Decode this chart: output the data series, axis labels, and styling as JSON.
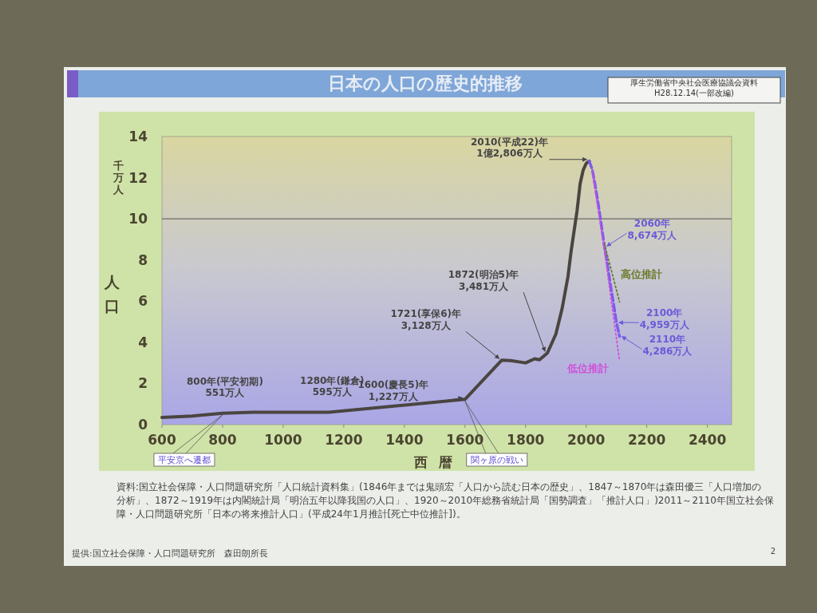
{
  "chart_data": {
    "type": "line",
    "title": "日本の人口の歴史的推移",
    "xlabel": "西暦",
    "ylabel": "人口",
    "xlim": [
      600,
      2480
    ],
    "xticks": [
      600,
      800,
      1000,
      1200,
      1400,
      1600,
      1800,
      2000,
      2200,
      2400
    ],
    "ylim": [
      0,
      14
    ],
    "yticks": [
      0,
      2,
      4,
      6,
      8,
      10,
      12,
      14
    ],
    "ref_lines": [
      {
        "axis": "y",
        "value": 10,
        "color": "#555555",
        "line_style": "solid"
      }
    ],
    "series": [
      {
        "color": "#4a4540",
        "line_style": "solid",
        "x": [
          600,
          700,
          800,
          900,
          1150,
          1600,
          1721,
          1750,
          1800,
          1830,
          1846,
          1872,
          1900,
          1920,
          1940,
          1950,
          1960,
          1970,
          1980,
          1990,
          2000,
          2010
        ],
        "values": [
          0.35,
          0.42,
          0.551,
          0.6,
          0.6,
          1.227,
          3.128,
          3.11,
          3.0,
          3.2,
          3.15,
          3.481,
          4.4,
          5.6,
          7.2,
          8.4,
          9.4,
          10.4,
          11.7,
          12.36,
          12.69,
          12.806
        ]
      },
      {
        "color": "#7b5cf0",
        "line_style": "dashed",
        "x": [
          2010,
          2020,
          2030,
          2040,
          2050,
          2060,
          2070,
          2080,
          2090,
          2100,
          2110
        ],
        "values": [
          12.806,
          12.4,
          11.6,
          10.7,
          9.7,
          8.674,
          7.8,
          6.8,
          5.9,
          4.959,
          4.286
        ]
      },
      {
        "name": "高位推計",
        "color": "#6b7a2a",
        "line_style": "dotted",
        "x": [
          2060,
          2110
        ],
        "values": [
          8.8,
          5.97
        ]
      },
      {
        "name": "低位推計",
        "color": "#d050d8",
        "line_style": "dotted",
        "x": [
          2020,
          2060,
          2110
        ],
        "values": [
          12.3,
          8.5,
          3.1
        ]
      }
    ],
    "annotations": [
      {
        "text": "800年(平安初期)\n551万人",
        "x": 800,
        "y": 0.551
      },
      {
        "text": "1280年(鎌倉)\n595万人",
        "x": 1280,
        "y": 0.595
      },
      {
        "text": "1600(慶長5)年\n1,227万人",
        "x": 1600,
        "y": 1.227
      },
      {
        "text": "1721(享保6)年\n3,128万人",
        "x": 1721,
        "y": 3.128
      },
      {
        "text": "1872(明治5)年\n3,481万人",
        "x": 1872,
        "y": 3.481
      },
      {
        "text": "2010(平成22)年\n1億2,806万人",
        "x": 2010,
        "y": 12.806
      },
      {
        "text": "2060年\n8,674万人",
        "x": 2060,
        "y": 8.674
      },
      {
        "text": "2100年\n4,959万人",
        "x": 2100,
        "y": 4.959
      },
      {
        "text": "2110年\n4,286万人",
        "x": 2110,
        "y": 4.286
      },
      {
        "text": "平安京へ遷都",
        "x": 800,
        "y": 0.551
      },
      {
        "text": "関ヶ原の戦い",
        "x": 1600,
        "y": 1.227
      },
      "千万人",
      "厚生労働省中央社会医療協議会資料\nH28.12.14(一部改編)",
      "資料:国立社会保障・人口問題研究所「人口統計資料集」(1846年までは鬼頭宏「人口から読む日本の歴史」、1847～1870年は森田優三「人口増加の分析」、1872～1919年は内閣統計局「明治五年以降我国の人口」、1920～2010年総務省統計局「国勢調査」「推計人口」)2011～2110年国立社会保障・人口問題研究所「日本の将来推計人口」(平成24年1月推計[死亡中位推計])。",
      "提供:国立社会保障・人口問題研究所　森田朗所長",
      "2"
    ]
  }
}
